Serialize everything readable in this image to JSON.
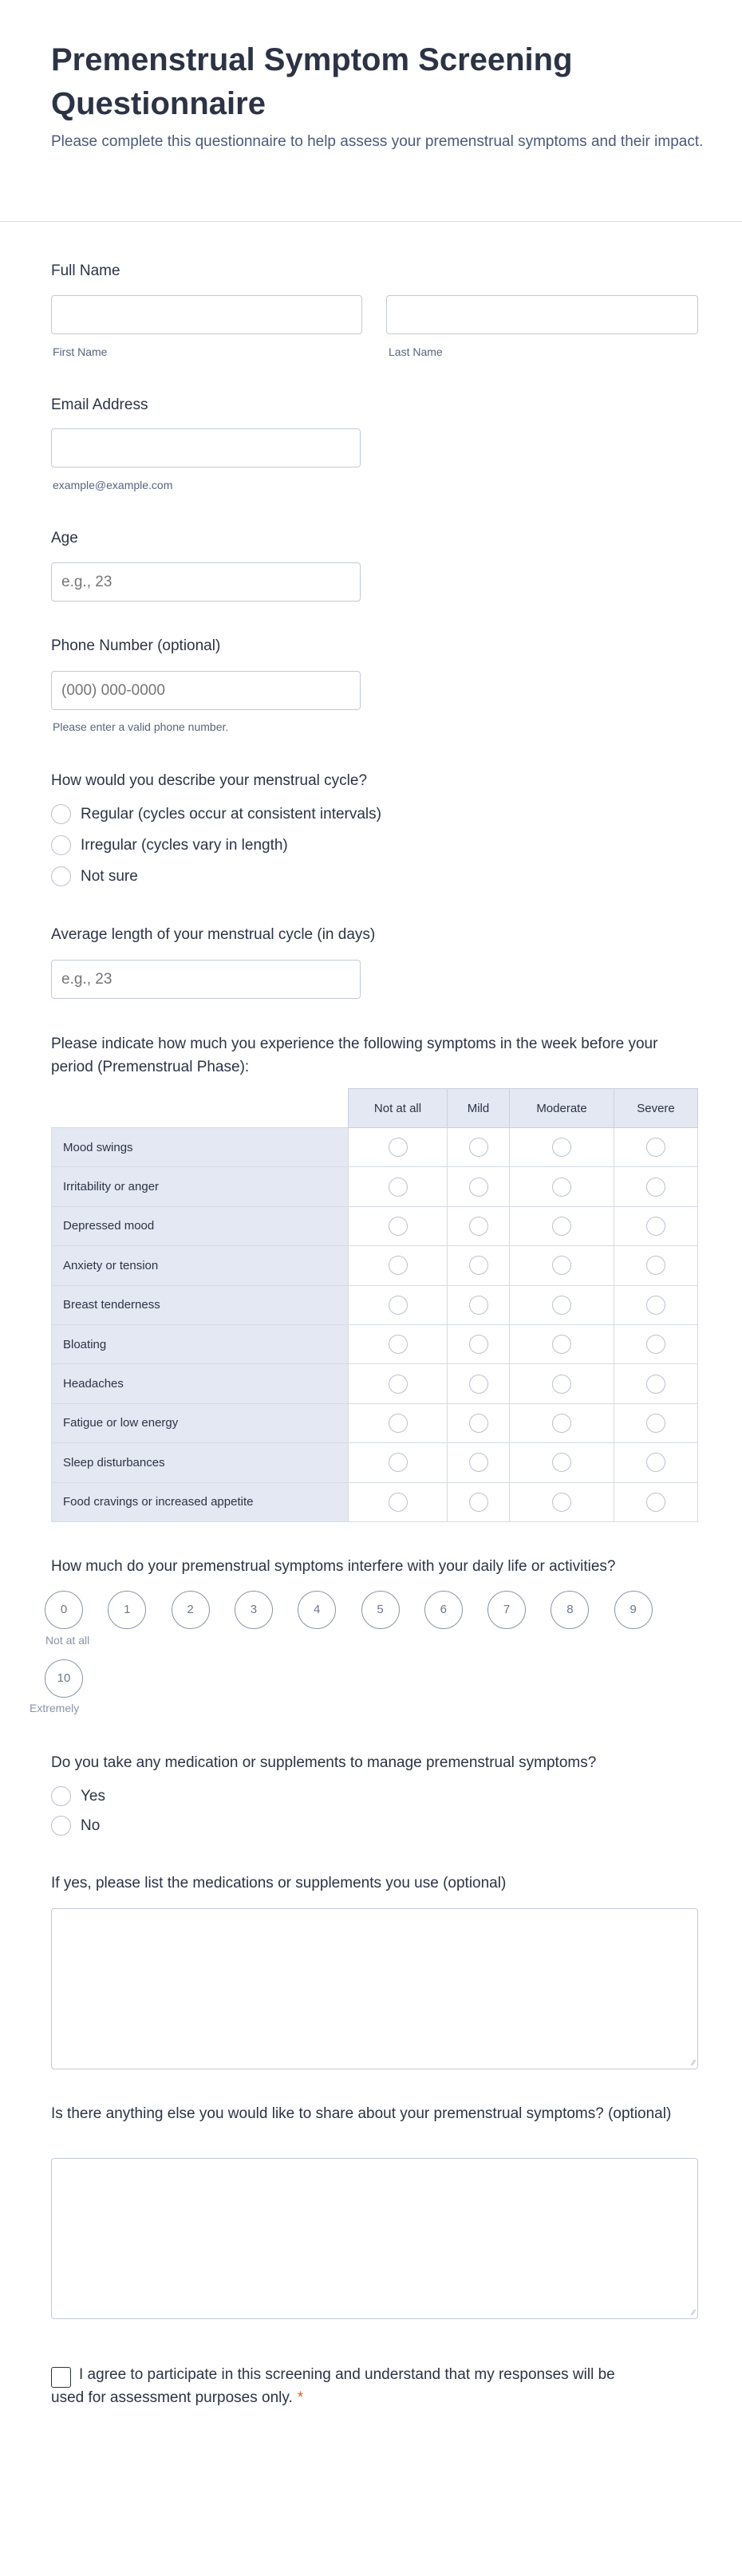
{
  "header": {
    "title": "Premenstrual Symptom Screening Questionnaire",
    "subtitle": "Please complete this questionnaire to help assess your premenstrual symptoms and their impact."
  },
  "full_name": {
    "label": "Full Name",
    "first_sublabel": "First Name",
    "last_sublabel": "Last Name",
    "first_value": "",
    "last_value": ""
  },
  "email": {
    "label": "Email Address",
    "sublabel": "example@example.com",
    "value": ""
  },
  "age": {
    "label": "Age",
    "placeholder": "e.g., 23"
  },
  "phone": {
    "label": "Phone Number (optional)",
    "placeholder": "(000) 000-0000",
    "sublabel": "Please enter a valid phone number."
  },
  "cycle": {
    "label": "How would you describe your menstrual cycle?",
    "options": [
      "Regular (cycles occur at consistent intervals)",
      "Irregular (cycles vary in length)",
      "Not sure"
    ]
  },
  "cycle_length": {
    "label": "Average length of your menstrual cycle (in days)",
    "placeholder": "e.g., 23"
  },
  "matrix": {
    "label": "Please indicate how much you experience the following symptoms in the week before your period (Premenstrual Phase):",
    "columns": [
      "Not at all",
      "Mild",
      "Moderate",
      "Severe"
    ],
    "rows": [
      "Mood swings",
      "Irritability or anger",
      "Depressed mood",
      "Anxiety or tension",
      "Breast tenderness",
      "Bloating",
      "Headaches",
      "Fatigue or low energy",
      "Sleep disturbances",
      "Food cravings or increased appetite"
    ]
  },
  "interference": {
    "label": "How much do your premenstrual symptoms interfere with your daily life or activities?",
    "options": [
      "0",
      "1",
      "2",
      "3",
      "4",
      "5",
      "6",
      "7",
      "8",
      "9",
      "10"
    ],
    "min_label": "Not at all",
    "max_label": "Extremely"
  },
  "medication": {
    "label": "Do you take any medication or supplements to manage premenstrual symptoms?",
    "options": [
      "Yes",
      "No"
    ]
  },
  "medication_list": {
    "label": "If yes, please list the medications or supplements you use (optional)",
    "value": ""
  },
  "other": {
    "label": "Is there anything else you would like to share about your premenstrual symptoms? (optional)",
    "value": ""
  },
  "consent": {
    "label": "I agree to participate in this screening and understand that my responses will be used for assessment purposes only.",
    "required_mark": "*",
    "checked": false
  }
}
